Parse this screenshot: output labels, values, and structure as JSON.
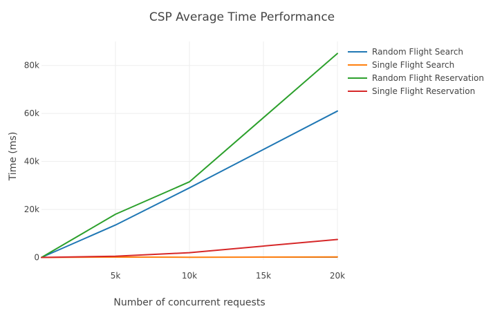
{
  "chart_data": {
    "type": "line",
    "title": "CSP Average Time Performance",
    "xlabel": "Number of concurrent requests",
    "ylabel": "Time (ms)",
    "xlim": [
      0,
      20000
    ],
    "ylim": [
      -1000,
      90000
    ],
    "x_ticks": [
      {
        "value": 5000,
        "label": "5k"
      },
      {
        "value": 10000,
        "label": "10k"
      },
      {
        "value": 15000,
        "label": "15k"
      },
      {
        "value": 20000,
        "label": "20k"
      }
    ],
    "y_ticks": [
      {
        "value": 0,
        "label": "0"
      },
      {
        "value": 20000,
        "label": "20k"
      },
      {
        "value": 40000,
        "label": "40k"
      },
      {
        "value": 60000,
        "label": "60k"
      },
      {
        "value": 80000,
        "label": "80k"
      }
    ],
    "grid": true,
    "legend_position": "top-right",
    "x": [
      0,
      5000,
      10000,
      20000
    ],
    "series": [
      {
        "name": "Random Flight Search",
        "color": "#1f77b4",
        "values": [
          0,
          13500,
          29000,
          61000
        ]
      },
      {
        "name": "Single Flight Search",
        "color": "#ff7f0e",
        "values": [
          0,
          150,
          100,
          200
        ]
      },
      {
        "name": "Random Flight Reservation",
        "color": "#2ca02c",
        "values": [
          0,
          18000,
          31500,
          85000
        ]
      },
      {
        "name": "Single Flight Reservation",
        "color": "#d62728",
        "values": [
          0,
          500,
          2000,
          7500
        ]
      }
    ]
  }
}
